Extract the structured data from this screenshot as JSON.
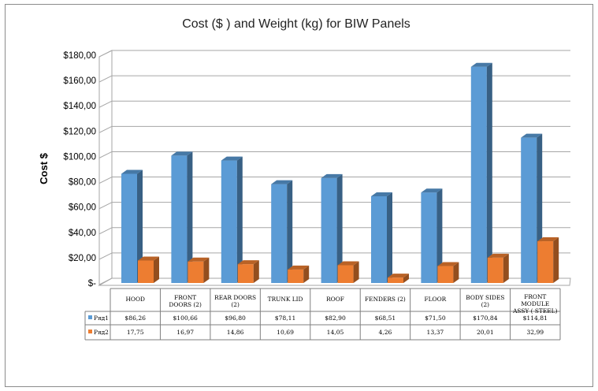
{
  "chart_data": {
    "type": "bar",
    "title": "Cost ($ ) and Weight (kg) for BIW Panels",
    "ylabel": "Cost $",
    "xlabel": "",
    "ylim": [
      0,
      180
    ],
    "yticks": [
      "$-",
      "$20,00",
      "$40,00",
      "$60,00",
      "$80,00",
      "$100,00",
      "$120,00",
      "$140,00",
      "$160,00",
      "$180,00"
    ],
    "categories": [
      [
        "HOOD"
      ],
      [
        "FRONT",
        "DOORS (2)"
      ],
      [
        "REAR DOORS",
        "(2)"
      ],
      [
        "TRUNK LID"
      ],
      [
        "ROOF"
      ],
      [
        "FENDERS (2)"
      ],
      [
        "FLOOR"
      ],
      [
        "BODY SIDES",
        "(2)"
      ],
      [
        "FRONT",
        "MODULE",
        "ASSY ( STEEL)"
      ]
    ],
    "series": [
      {
        "name": "Ряд1",
        "color": "#5b9bd5",
        "values": [
          86.26,
          100.66,
          96.8,
          78.11,
          82.9,
          68.51,
          71.5,
          170.84,
          114.81
        ],
        "labels": [
          "$86,26",
          "$100,66",
          "$96,80",
          "$78,11",
          "$82,90",
          "$68,51",
          "$71,50",
          "$170,84",
          "$114,81"
        ]
      },
      {
        "name": "Ряд2",
        "color": "#ed7d31",
        "values": [
          17.75,
          16.97,
          14.86,
          10.69,
          14.05,
          4.26,
          13.37,
          20.01,
          32.99
        ],
        "labels": [
          "17,75",
          "16,97",
          "14,86",
          "10,69",
          "14,05",
          "4,26",
          "13,37",
          "20,01",
          "32,99"
        ]
      }
    ],
    "grid": true,
    "legend": "data-table"
  }
}
